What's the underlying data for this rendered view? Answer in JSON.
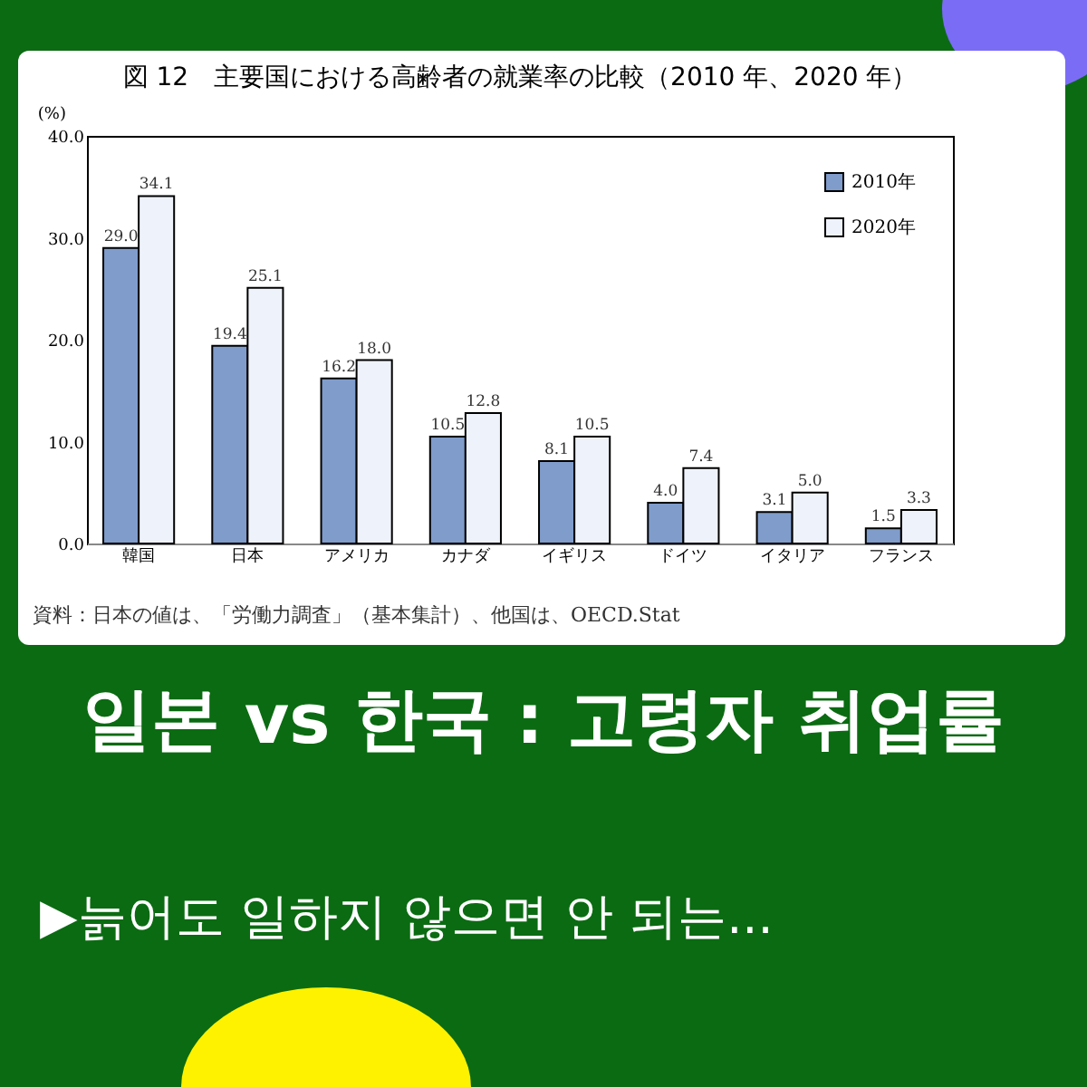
{
  "chart_data": {
    "type": "bar",
    "title": "図 12　主要国における高齢者の就業率の比較（2010 年、2020 年）",
    "subtitle": "일본 vs 한국 : 고령자 취업률",
    "ylabel": "(%)",
    "categories": [
      "韓国",
      "日本",
      "アメリカ",
      "カナダ",
      "イギリス",
      "ドイツ",
      "イタリア",
      "フランス"
    ],
    "series": [
      {
        "name": "2010年",
        "color": "#7f9ccb",
        "values": [
          29.0,
          19.4,
          16.2,
          10.5,
          8.1,
          4.0,
          3.1,
          1.5
        ],
        "value_labels": [
          "29.0",
          "19.4",
          "16.2",
          "10.5",
          "8.1",
          "4.0",
          "3.1",
          "1.5"
        ]
      },
      {
        "name": "2020年",
        "color": "#eef2fa",
        "values": [
          34.1,
          25.1,
          18.0,
          12.8,
          10.5,
          7.4,
          5.0,
          3.3
        ],
        "value_labels": [
          "34.1",
          "25.1",
          "18.0",
          "12.8",
          "10.5",
          "7.4",
          "5.0",
          "3.3"
        ]
      }
    ],
    "ylim": [
      0,
      40
    ],
    "yticks": [
      {
        "value": 0,
        "label": "0.0"
      },
      {
        "value": 10,
        "label": "10.0"
      },
      {
        "value": 20,
        "label": "20.0"
      },
      {
        "value": 30,
        "label": "30.0"
      },
      {
        "value": 40,
        "label": "40.0"
      }
    ],
    "legend": "top right",
    "grid": false,
    "annotations": [
      "資料：日本の値は、「労働力調査」（基本集計）、他国は、OECD.Stat",
      "▶늙어도 일하지 않으면 안 되는..."
    ]
  }
}
